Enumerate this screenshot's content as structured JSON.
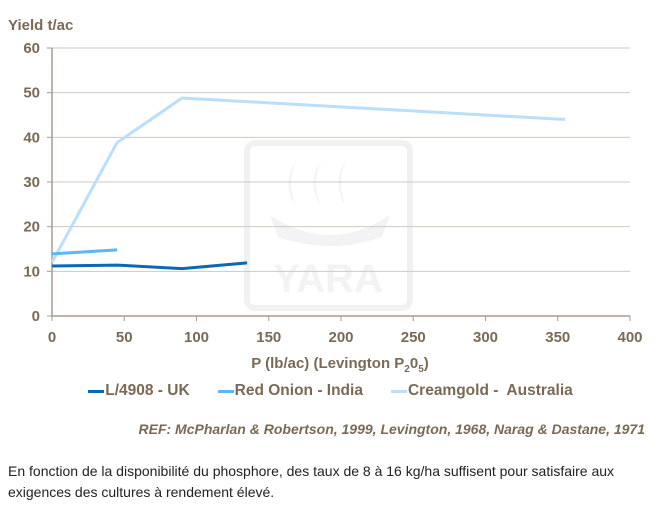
{
  "chart_data": {
    "type": "line",
    "ylabel": "Yield t/ac",
    "xlabel_main": "P (lb/ac) (Levington P",
    "xlabel_sub1": "2",
    "xlabel_mid": "0",
    "xlabel_sub2": "5",
    "xlabel_end": ")",
    "xlim": [
      0,
      400
    ],
    "ylim": [
      0,
      60
    ],
    "xticks": [
      0,
      50,
      100,
      150,
      200,
      250,
      300,
      350,
      400
    ],
    "yticks": [
      0,
      10,
      20,
      30,
      40,
      50,
      60
    ],
    "grid": "horizontal",
    "legend_position": "bottom",
    "series": [
      {
        "name": "L/4908 - UK",
        "color": "#0b68b5",
        "points": [
          [
            0,
            11.2
          ],
          [
            45,
            11.4
          ],
          [
            90,
            10.6
          ],
          [
            135,
            11.9
          ]
        ]
      },
      {
        "name": "Red Onion - India",
        "color": "#5cb7f3",
        "points": [
          [
            0,
            13.9
          ],
          [
            45,
            14.8
          ]
        ]
      },
      {
        "name": "Creamgold -  Australia",
        "color": "#b9dffa",
        "points": [
          [
            0,
            12
          ],
          [
            45,
            38.8
          ],
          [
            90,
            48.8
          ],
          [
            355,
            44
          ]
        ]
      }
    ],
    "watermark": "YARA"
  },
  "ref": "REF: McPharlan & Robertson, 1999, Levington, 1968, Narag & Dastane, 1971",
  "caption": "En fonction de la disponibilité du phosphore, des taux de 8 à 16 kg/ha suffisent pour satisfaire aux exigences des cultures à rendement élevé."
}
